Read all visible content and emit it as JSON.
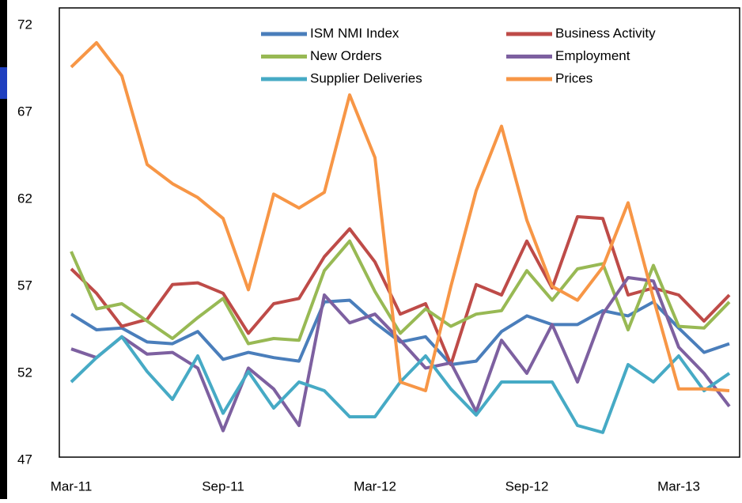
{
  "chart_data": {
    "type": "line",
    "categories": [
      "Mar-11",
      null,
      null,
      null,
      null,
      null,
      "Sep-11",
      null,
      null,
      null,
      null,
      null,
      "Mar-12",
      null,
      null,
      null,
      null,
      null,
      "Sep-12",
      null,
      null,
      null,
      null,
      null,
      "Mar-13",
      null,
      null
    ],
    "series": [
      {
        "name": "ISM NMI Index",
        "color": "#4a7ebb",
        "values": [
          55.4,
          54.5,
          54.6,
          53.8,
          53.7,
          54.4,
          52.8,
          53.2,
          52.9,
          52.7,
          56.1,
          56.2,
          54.9,
          53.8,
          54.1,
          52.5,
          52.7,
          54.4,
          55.3,
          54.8,
          54.8,
          55.6,
          55.3,
          56.1,
          54.6,
          53.2,
          53.7
        ]
      },
      {
        "name": "Business Activity",
        "color": "#be4b48",
        "values": [
          58.0,
          56.6,
          54.7,
          55.1,
          57.1,
          57.2,
          56.6,
          54.3,
          56.0,
          56.3,
          58.7,
          60.3,
          58.4,
          55.4,
          56.0,
          52.5,
          57.1,
          56.5,
          59.6,
          56.9,
          61.0,
          60.9,
          56.5,
          56.9,
          56.5,
          55.0,
          56.5
        ]
      },
      {
        "name": "New Orders",
        "color": "#98b954",
        "values": [
          59.0,
          55.7,
          56.0,
          55.0,
          54.0,
          55.2,
          56.3,
          53.7,
          54.0,
          53.9,
          57.9,
          59.6,
          56.7,
          54.3,
          55.7,
          54.7,
          55.4,
          55.6,
          57.9,
          56.2,
          58.0,
          58.3,
          54.5,
          58.2,
          54.7,
          54.6,
          56.1
        ]
      },
      {
        "name": "Employment",
        "color": "#7d60a0",
        "values": [
          53.4,
          52.9,
          54.1,
          53.1,
          53.2,
          52.3,
          48.7,
          52.3,
          51.1,
          49.0,
          56.5,
          54.9,
          55.4,
          53.9,
          52.3,
          52.6,
          49.8,
          53.9,
          52.0,
          54.8,
          51.5,
          55.4,
          57.5,
          57.3,
          53.5,
          52.0,
          50.1
        ]
      },
      {
        "name": "Supplier Deliveries",
        "color": "#46aac5",
        "values": [
          51.5,
          52.9,
          54.1,
          52.1,
          50.5,
          53.0,
          49.7,
          52.1,
          50.0,
          51.5,
          51.0,
          49.5,
          49.5,
          51.5,
          53.0,
          51.1,
          49.6,
          51.5,
          51.5,
          51.5,
          49.0,
          48.6,
          52.5,
          51.5,
          53.0,
          51.0,
          52.0
        ]
      },
      {
        "name": "Prices",
        "color": "#f79646",
        "values": [
          69.6,
          71.0,
          69.1,
          64.0,
          62.9,
          62.1,
          60.9,
          56.8,
          62.3,
          61.5,
          62.4,
          68.0,
          64.4,
          51.5,
          51.0,
          57.0,
          62.5,
          66.2,
          60.8,
          57.0,
          56.2,
          58.1,
          61.8,
          56.3,
          51.1,
          51.1,
          51.0
        ]
      }
    ],
    "ylim": [
      47,
      72
    ],
    "yticks": [
      47,
      52,
      57,
      62,
      67,
      72
    ],
    "grid": false,
    "legend": "top"
  }
}
